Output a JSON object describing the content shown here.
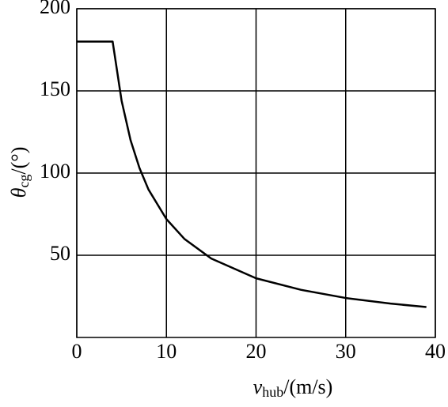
{
  "chart_data": {
    "type": "line",
    "x_label": {
      "symbol": "v",
      "subscript": "hub",
      "unit": "/(m/s)"
    },
    "y_label": {
      "symbol": "θ",
      "subscript": "cg",
      "unit": "/(°)"
    },
    "x": [
      0,
      4,
      5,
      6,
      7,
      8,
      10,
      12,
      15,
      20,
      25,
      30,
      35,
      39
    ],
    "series": [
      {
        "color": "#000000",
        "values": [
          180,
          180,
          144,
          120,
          103,
          90,
          72,
          60,
          48,
          36,
          29,
          24,
          20.6,
          18.5
        ]
      }
    ],
    "xlim": [
      0,
      40
    ],
    "xticks": [
      0,
      10,
      20,
      30,
      40
    ],
    "ylim": [
      0,
      200
    ],
    "yticks": [
      50,
      100,
      150,
      200
    ],
    "grid": true
  }
}
